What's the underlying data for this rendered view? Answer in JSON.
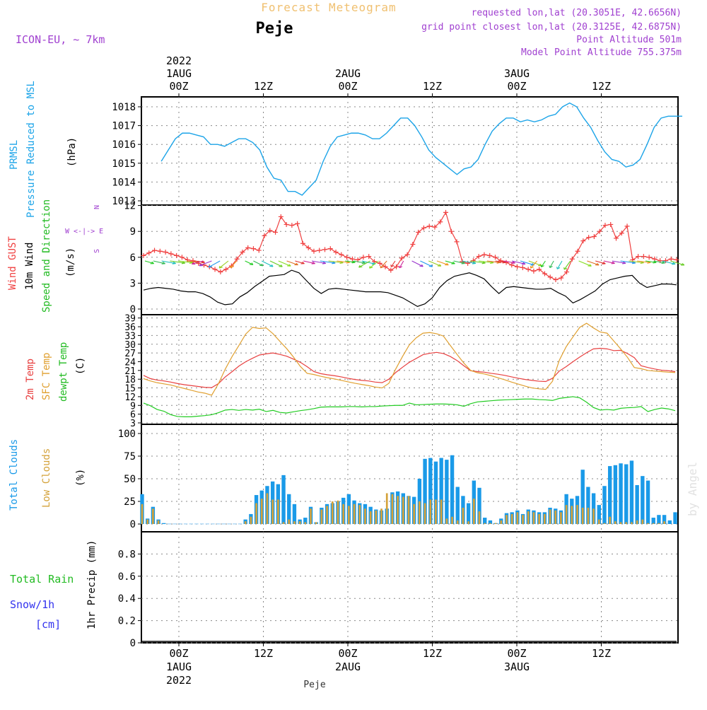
{
  "header": {
    "model": "ICON-EU, ~ 7km",
    "chart_title": "Forecast Meteogram",
    "place": "Peje",
    "requested": "requested lon,lat (20.3051E, 42.6656N)",
    "gridpoint": "grid point closest lon,lat (20.3125E, 42.6875N)",
    "point_alt": "Point Altitude 501m",
    "model_alt": "Model Point Altitude 755.375m",
    "credit": "by Angel",
    "footer_place": "Peje"
  },
  "time_axis": {
    "ticks": [
      {
        "h": 0,
        "top": [
          "2022",
          "1AUG",
          "00Z"
        ],
        "bottom": [
          "00Z",
          "1AUG",
          "2022"
        ]
      },
      {
        "h": 12,
        "top": [
          "12Z"
        ],
        "bottom": [
          "12Z"
        ]
      },
      {
        "h": 24,
        "top": [
          "2AUG",
          "00Z"
        ],
        "bottom": [
          "00Z",
          "2AUG"
        ]
      },
      {
        "h": 36,
        "top": [
          "12Z"
        ],
        "bottom": [
          "12Z"
        ]
      },
      {
        "h": 48,
        "top": [
          "3AUG",
          "00Z"
        ],
        "bottom": [
          "00Z",
          "3AUG"
        ]
      },
      {
        "h": 60,
        "top": [
          "12Z"
        ],
        "bottom": [
          "12Z"
        ]
      }
    ]
  },
  "panels": {
    "pressure": {
      "labels": [
        "PRMSL",
        "Pressure Reduced to MSL"
      ],
      "unit": "(hPa)",
      "yticks": [
        1013,
        1014,
        1015,
        1016,
        1017,
        1018
      ]
    },
    "wind": {
      "labels": [
        "Wind GUST",
        "10m Wind",
        "Speed and Direction"
      ],
      "unit": "(m/s)",
      "compass": [
        "N",
        "W <-|-> E",
        "S"
      ],
      "yticks": [
        0,
        3,
        6,
        9,
        12
      ]
    },
    "temp": {
      "labels": [
        "2m Temp",
        "SFC Temp",
        "dewpt Temp"
      ],
      "unit": "(C)",
      "yticks": [
        3,
        6,
        9,
        12,
        15,
        18,
        21,
        24,
        27,
        30,
        33,
        36,
        39
      ]
    },
    "clouds": {
      "labels": [
        "Total Clouds",
        "Low Clouds"
      ],
      "unit": "(%)",
      "yticks": [
        0,
        25,
        50,
        75,
        100
      ]
    },
    "precip": {
      "labels": [
        "Total Rain",
        "Snow/1h",
        "[cm]"
      ],
      "ylabel": "1hr Precip (mm)",
      "yticks": [
        "0",
        "0.2",
        "0.4",
        "0.6",
        "0.8"
      ]
    }
  },
  "colors": {
    "pressure": "#1ca4e8",
    "gust": "#f04040",
    "wind10m": "#000000",
    "wind_label": "#22bb22",
    "t2m": "#e84040",
    "tsfc": "#e0a030",
    "dewpt": "#22cc22",
    "total_clouds": "#1a9ae8",
    "low_clouds": "#d4a23a",
    "rain_label": "#22bb22",
    "snow_label": "#3333ee",
    "header_purple": "#a040d0",
    "title_orange": "#f0c070"
  },
  "chart_data": [
    {
      "type": "line",
      "name": "pressure",
      "ylim": [
        1013,
        1018.6
      ],
      "series": [
        {
          "name": "PRMSL",
          "x": [
            -2.5,
            -1.5,
            -0.5,
            0.5,
            1.5,
            2.5,
            3.5,
            4.5,
            5.5,
            6.5,
            7.5,
            8.5,
            9.5,
            10.5,
            11.5,
            12.5,
            13.5,
            14.5,
            15.5,
            16.5,
            17.5,
            18.5,
            19.5,
            20.5,
            21.5,
            22.5,
            23.5,
            24.5,
            25.5,
            26.5,
            27.5,
            28.5,
            29.5,
            30.5,
            31.5,
            32.5,
            33.5,
            34.5,
            35.5,
            36.5,
            37.5,
            38.5,
            39.5,
            40.5,
            41.5,
            42.5,
            43.5,
            44.5,
            45.5,
            46.5,
            47.5,
            48.5,
            49.5,
            50.5,
            51.5,
            52.5,
            53.5,
            54.5,
            55.5,
            56.5,
            57.5,
            58.5,
            59.5,
            60.5,
            61.5,
            62.5,
            63.5,
            64.5,
            65.5,
            66.5,
            67.5,
            68.5,
            69.5,
            70.5,
            71.5
          ],
          "values": [
            1015.1,
            1015.7,
            1016.3,
            1016.6,
            1016.6,
            1016.5,
            1016.4,
            1016.0,
            1016.0,
            1015.9,
            1016.1,
            1016.3,
            1016.3,
            1016.1,
            1015.7,
            1014.8,
            1014.2,
            1014.1,
            1013.5,
            1013.5,
            1013.3,
            1013.7,
            1014.1,
            1015.1,
            1015.9,
            1016.4,
            1016.5,
            1016.6,
            1016.6,
            1016.5,
            1016.3,
            1016.3,
            1016.6,
            1017.0,
            1017.4,
            1017.4,
            1017.0,
            1016.4,
            1015.7,
            1015.3,
            1015.0,
            1014.7,
            1014.4,
            1014.7,
            1014.8,
            1015.2,
            1016.0,
            1016.7,
            1017.1,
            1017.4,
            1017.4,
            1017.2,
            1017.3,
            1017.2,
            1017.3,
            1017.5,
            1017.6,
            1018.0,
            1018.2,
            1018.0,
            1017.4,
            1016.9,
            1016.2,
            1015.6,
            1015.2,
            1015.1,
            1014.8,
            1014.9,
            1015.2,
            1016.0,
            1016.9,
            1017.4,
            1017.5,
            1017.5,
            1017.5
          ]
        }
      ]
    },
    {
      "type": "line",
      "name": "wind",
      "ylim": [
        0,
        12
      ],
      "series": [
        {
          "name": "Wind GUST",
          "values": [
            6.2,
            6.5,
            6.8,
            6.7,
            6.6,
            6.4,
            6.2,
            6.0,
            5.7,
            5.6,
            5.3,
            5.1,
            4.9,
            4.6,
            4.3,
            4.6,
            5.0,
            5.8,
            6.6,
            7.1,
            7.0,
            6.8,
            8.5,
            9.1,
            8.9,
            10.7,
            9.8,
            9.7,
            9.9,
            7.6,
            7.1,
            6.7,
            6.8,
            6.9,
            7.0,
            6.6,
            6.3,
            6.0,
            5.8,
            5.7,
            6.0,
            6.1,
            5.5,
            5.3,
            4.9,
            4.5,
            4.9,
            5.9,
            6.3,
            7.5,
            8.9,
            9.4,
            9.6,
            9.5,
            10.1,
            11.2,
            9.0,
            7.8,
            5.5,
            5.3,
            5.6,
            6.1,
            6.3,
            6.2,
            6.0,
            5.6,
            5.4,
            5.1,
            4.9,
            4.8,
            4.6,
            4.4,
            4.6,
            4.1,
            3.7,
            3.4,
            3.6,
            4.3,
            5.8,
            6.7,
            7.9,
            8.3,
            8.4,
            9.0,
            9.7,
            9.8,
            8.2,
            8.8,
            9.6,
            5.7,
            6.1,
            6.1,
            6.0,
            5.8,
            5.6,
            5.6,
            5.8,
            5.7
          ]
        },
        {
          "name": "10m Wind",
          "values": [
            2.2,
            2.4,
            2.5,
            2.4,
            2.3,
            2.1,
            2.0,
            2.0,
            1.8,
            1.4,
            0.8,
            0.5,
            0.6,
            1.4,
            1.9,
            2.6,
            3.2,
            3.8,
            3.9,
            4.0,
            4.5,
            4.2,
            3.3,
            2.4,
            1.8,
            2.3,
            2.4,
            2.3,
            2.2,
            2.1,
            2.0,
            2.0,
            2.0,
            1.9,
            1.6,
            1.3,
            0.8,
            0.3,
            0.6,
            1.3,
            2.5,
            3.3,
            3.8,
            4.0,
            4.2,
            3.9,
            3.5,
            2.6,
            1.8,
            2.5,
            2.6,
            2.5,
            2.4,
            2.3,
            2.3,
            2.4,
            1.9,
            1.5,
            0.7,
            1.1,
            1.6,
            2.1,
            2.9,
            3.4,
            3.6,
            3.8,
            3.9,
            3.0,
            2.5,
            2.7,
            2.9,
            2.9,
            2.8
          ]
        }
      ]
    },
    {
      "type": "line",
      "name": "temperature",
      "ylim": [
        3,
        39
      ],
      "series": [
        {
          "name": "2m Temp",
          "values": [
            19.3,
            18.2,
            17.7,
            17.4,
            17.0,
            16.5,
            16.1,
            15.8,
            15.5,
            15.2,
            15.1,
            16.5,
            18.8,
            20.6,
            22.5,
            24.0,
            25.2,
            26.3,
            26.7,
            27.0,
            26.5,
            25.9,
            24.9,
            23.8,
            22.3,
            20.6,
            19.9,
            19.5,
            19.2,
            18.8,
            18.3,
            17.9,
            17.6,
            17.4,
            17.0,
            16.8,
            18.0,
            20.3,
            22.1,
            23.8,
            25.1,
            26.4,
            26.9,
            27.2,
            26.8,
            25.8,
            24.4,
            22.6,
            20.9,
            20.6,
            20.4,
            20.0,
            19.7,
            19.3,
            18.8,
            18.3,
            17.9,
            17.6,
            17.3,
            17.2,
            18.3,
            20.8,
            22.3,
            24.0,
            25.6,
            27.1,
            28.4,
            28.6,
            28.4,
            27.8,
            27.9,
            26.8,
            25.4,
            22.6,
            22.0,
            21.5,
            21.1,
            20.9,
            20.6
          ]
        },
        {
          "name": "SFC Temp",
          "values": [
            18.2,
            17.4,
            16.8,
            16.4,
            16.0,
            15.4,
            14.8,
            14.2,
            13.6,
            13.2,
            12.5,
            16.5,
            21.5,
            25.8,
            29.6,
            33.5,
            35.8,
            35.4,
            35.6,
            33.6,
            31.0,
            28.5,
            25.6,
            22.4,
            20.0,
            19.6,
            19.0,
            18.5,
            18.1,
            17.6,
            17.1,
            16.6,
            16.2,
            15.8,
            15.3,
            15.0,
            16.6,
            21.5,
            25.8,
            29.8,
            32.2,
            33.8,
            34.0,
            33.6,
            32.8,
            29.6,
            26.5,
            23.5,
            21.0,
            20.2,
            19.8,
            19.2,
            18.5,
            17.8,
            17.0,
            16.3,
            15.6,
            15.0,
            14.7,
            14.5,
            17.3,
            24.5,
            29.1,
            32.5,
            35.8,
            37.2,
            35.6,
            34.2,
            33.8,
            31.1,
            28.4,
            25.5,
            22.0,
            21.6,
            21.0,
            20.8,
            20.6,
            20.4,
            20.3
          ]
        },
        {
          "name": "dewpt Temp",
          "values": [
            9.8,
            8.9,
            7.6,
            7.0,
            5.8,
            5.2,
            5.1,
            5.1,
            5.3,
            5.5,
            5.8,
            6.5,
            7.4,
            7.6,
            7.3,
            7.6,
            7.4,
            7.7,
            6.9,
            7.3,
            6.6,
            6.4,
            6.8,
            7.2,
            7.5,
            7.9,
            8.4,
            8.5,
            8.5,
            8.5,
            8.6,
            8.6,
            8.5,
            8.6,
            8.6,
            8.8,
            8.9,
            9.0,
            9.0,
            9.8,
            9.2,
            9.3,
            9.4,
            9.5,
            9.5,
            9.4,
            9.2,
            8.7,
            9.6,
            10.2,
            10.4,
            10.6,
            10.8,
            10.9,
            11.0,
            11.1,
            11.2,
            11.2,
            11.0,
            10.9,
            10.7,
            11.4,
            11.7,
            12.0,
            11.6,
            10.1,
            8.3,
            7.4,
            7.6,
            7.4,
            8.0,
            8.2,
            8.3,
            8.6,
            6.9,
            7.6,
            8.1,
            7.8,
            7.2
          ]
        }
      ]
    },
    {
      "type": "bar",
      "name": "clouds",
      "ylim": [
        0,
        100
      ],
      "series": [
        {
          "name": "Total Clouds",
          "values": [
            33,
            6,
            19,
            5,
            1,
            0,
            0,
            0,
            0,
            0,
            0,
            0,
            0,
            0,
            0,
            0,
            0,
            0,
            0,
            5,
            11,
            32,
            37,
            42,
            47,
            44,
            54,
            33,
            22,
            5,
            7,
            19,
            2,
            18,
            22,
            23,
            25,
            29,
            33,
            26,
            23,
            22,
            19,
            16,
            15,
            17,
            35,
            36,
            34,
            31,
            30,
            50,
            72,
            73,
            69,
            73,
            71,
            76,
            41,
            31,
            23,
            48,
            40,
            7,
            4,
            1,
            6,
            12,
            13,
            15,
            11,
            16,
            15,
            13,
            13,
            18,
            17,
            15,
            33,
            28,
            31,
            60,
            41,
            34,
            21,
            42,
            64,
            65,
            67,
            66,
            70,
            43,
            53,
            48,
            7,
            10,
            10,
            4,
            13
          ]
        },
        {
          "name": "Low Clouds",
          "values": [
            22,
            5,
            17,
            4,
            0,
            0,
            0,
            0,
            0,
            0,
            0,
            0,
            0,
            0,
            0,
            0,
            0,
            0,
            0,
            3,
            8,
            23,
            28,
            34,
            27,
            27,
            2,
            5,
            3,
            3,
            2,
            17,
            2,
            16,
            20,
            25,
            26,
            22,
            20,
            22,
            21,
            17,
            14,
            15,
            17,
            34,
            33,
            31,
            30,
            31,
            22,
            25,
            23,
            27,
            27,
            27,
            6,
            8,
            4,
            18,
            3,
            28,
            14,
            1,
            1,
            1,
            4,
            10,
            11,
            13,
            10,
            14,
            13,
            11,
            11,
            16,
            15,
            13,
            21,
            20,
            21,
            18,
            18,
            17,
            5,
            1,
            8,
            3,
            2,
            2,
            2,
            4,
            5,
            1,
            1,
            1,
            3
          ]
        }
      ]
    },
    {
      "type": "line",
      "name": "precip",
      "ylim": [
        0,
        1
      ],
      "series": [
        {
          "name": "1hr Precip",
          "values": [
            0,
            0,
            0,
            0,
            0,
            0,
            0,
            0,
            0,
            0,
            0,
            0,
            0,
            0,
            0,
            0,
            0,
            0,
            0,
            0,
            0,
            0,
            0,
            0,
            0,
            0,
            0,
            0,
            0,
            0,
            0,
            0,
            0,
            0,
            0,
            0,
            0,
            0,
            0,
            0,
            0,
            0,
            0,
            0,
            0,
            0,
            0,
            0,
            0,
            0,
            0,
            0,
            0,
            0,
            0,
            0,
            0,
            0,
            0,
            0,
            0,
            0,
            0,
            0,
            0,
            0,
            0,
            0,
            0,
            0,
            0,
            0
          ]
        }
      ]
    }
  ]
}
